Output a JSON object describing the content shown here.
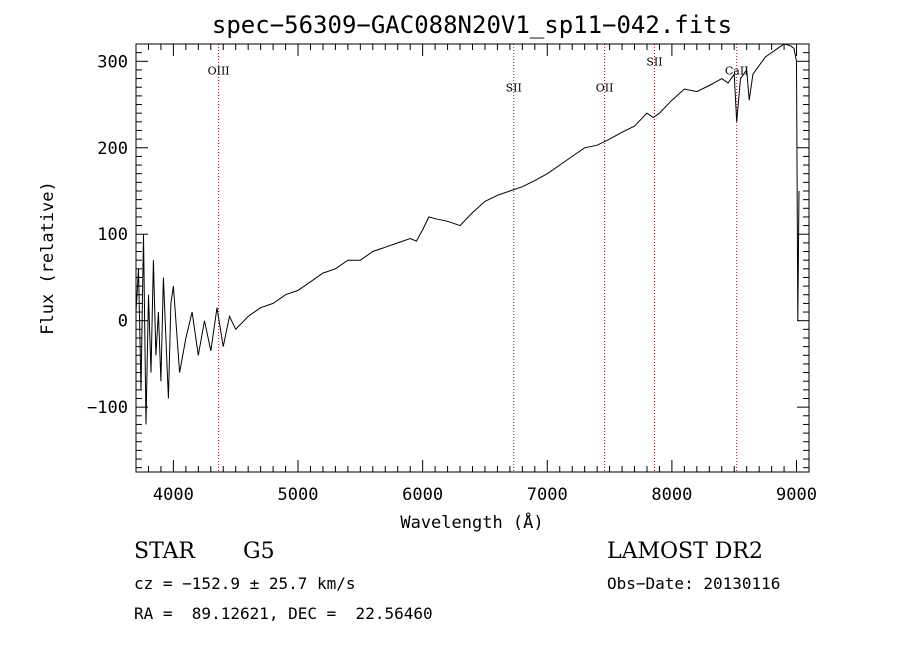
{
  "chart_data": {
    "type": "line",
    "title": "spec−56309−GAC088N20V1_sp11−042.fits",
    "xlabel": "Wavelength (Å)",
    "ylabel": "Flux (relative)",
    "xlim": [
      3700,
      9100
    ],
    "ylim": [
      -175,
      320
    ],
    "xticks": [
      4000,
      5000,
      6000,
      7000,
      8000,
      9000
    ],
    "xtick_labels": [
      "4000",
      "5000",
      "6000",
      "7000",
      "8000",
      "9000"
    ],
    "yticks": [
      -100,
      0,
      100,
      200,
      300
    ],
    "ytick_labels": [
      "−100",
      "0",
      "100",
      "200",
      "300"
    ],
    "grid": false,
    "legend": "none",
    "series": [
      {
        "x": [
          3700,
          3720,
          3740,
          3760,
          3780,
          3800,
          3820,
          3840,
          3860,
          3880,
          3900,
          3920,
          3940,
          3960,
          3980,
          4000,
          4050,
          4100,
          4150,
          4200,
          4250,
          4300,
          4350,
          4400,
          4450,
          4500,
          4600,
          4700,
          4800,
          4900,
          5000,
          5100,
          5200,
          5300,
          5400,
          5500,
          5600,
          5700,
          5800,
          5900,
          5950,
          6000,
          6050,
          6100,
          6200,
          6300,
          6400,
          6500,
          6600,
          6700,
          6800,
          6900,
          7000,
          7100,
          7200,
          7300,
          7400,
          7500,
          7600,
          7700,
          7800,
          7850,
          7900,
          8000,
          8100,
          8200,
          8300,
          8400,
          8450,
          8500,
          8520,
          8550,
          8600,
          8620,
          8650,
          8700,
          8750,
          8800,
          8850,
          8900,
          8950,
          8980,
          9000,
          9010,
          9020
        ],
        "y": [
          10,
          60,
          -80,
          100,
          -120,
          30,
          -60,
          70,
          -40,
          10,
          -70,
          50,
          -20,
          -90,
          20,
          40,
          -60,
          -20,
          10,
          -40,
          0,
          -35,
          15,
          -30,
          5,
          -10,
          5,
          15,
          20,
          30,
          35,
          45,
          55,
          60,
          70,
          70,
          80,
          85,
          90,
          95,
          92,
          105,
          120,
          118,
          115,
          110,
          125,
          138,
          145,
          150,
          155,
          162,
          170,
          180,
          190,
          200,
          203,
          210,
          218,
          225,
          240,
          235,
          240,
          255,
          268,
          265,
          272,
          280,
          275,
          285,
          230,
          280,
          290,
          255,
          285,
          295,
          305,
          310,
          315,
          320,
          318,
          315,
          300,
          0,
          150
        ],
        "line_color": "#000000"
      }
    ],
    "annotations": [
      {
        "label": "OIII",
        "x": 4363,
        "label_y": 285,
        "line_color": "#8b1a1a"
      },
      {
        "label": "SII",
        "x": 6731,
        "label_y": 265,
        "line_color": "#8b1a1a"
      },
      {
        "label": "OII",
        "x": 7460,
        "label_y": 265,
        "line_color": "#8b1a1a"
      },
      {
        "label": "SII",
        "x": 7860,
        "label_y": 295,
        "line_color": "#8b1a1a"
      },
      {
        "label": "CaII",
        "x": 8520,
        "label_y": 285,
        "line_color": "#8b1a1a"
      }
    ]
  },
  "info": {
    "object_class": "STAR",
    "subclass": "G5",
    "cz": "cz = −152.9 ± 25.7 km/s",
    "radec": "RA =  89.12621, DEC =  22.56460",
    "survey": "LAMOST DR2",
    "obs_date": "Obs−Date: 20130116"
  }
}
